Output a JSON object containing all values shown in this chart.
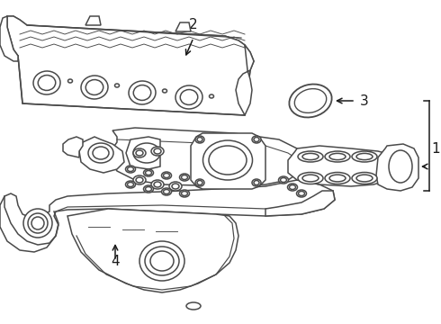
{
  "background_color": "#ffffff",
  "line_color": "#4a4a4a",
  "line_width": 1.1,
  "label_color": "#1a1a1a",
  "label_fontsize": 10,
  "fig_width": 4.9,
  "fig_height": 3.6,
  "dpi": 100
}
